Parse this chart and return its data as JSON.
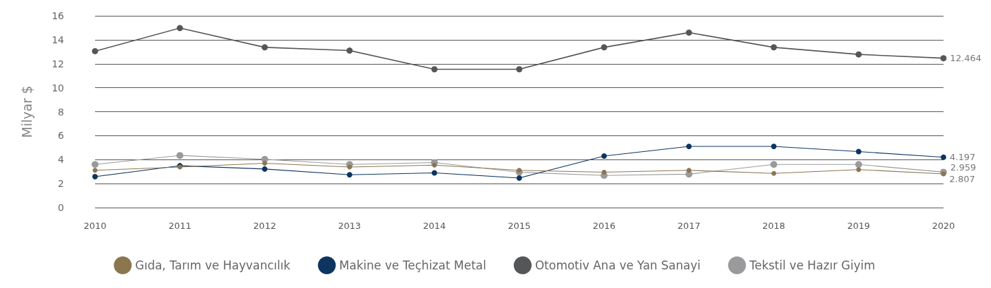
{
  "chart_data": {
    "type": "line",
    "ylabel": "Milyar $",
    "categories": [
      "2010",
      "2011",
      "2012",
      "2013",
      "2014",
      "2015",
      "2016",
      "2017",
      "2018",
      "2019",
      "2020"
    ],
    "series": [
      {
        "name": "Gıda, Tarım ve Hayvancılık",
        "color": "#8b7650",
        "values": [
          3.11,
          3.38,
          3.7,
          3.38,
          3.54,
          3.11,
          2.95,
          3.11,
          2.85,
          3.17,
          2.807
        ],
        "value_labels": [
          null,
          null,
          null,
          null,
          null,
          null,
          null,
          null,
          null,
          null,
          "2.807"
        ]
      },
      {
        "name": "Makine ve Teçhizat Metal",
        "color": "#0d3560",
        "values": [
          2.58,
          3.49,
          3.22,
          2.74,
          2.9,
          2.47,
          4.3,
          5.1,
          5.1,
          4.67,
          4.197
        ],
        "value_labels": [
          null,
          null,
          null,
          null,
          null,
          null,
          null,
          null,
          null,
          null,
          "4.197"
        ]
      },
      {
        "name": "Otomotiv Ana ve Yan Sanayi",
        "color": "#555658",
        "values": [
          13.05,
          14.98,
          13.37,
          13.1,
          11.54,
          11.54,
          13.37,
          14.6,
          13.37,
          12.78,
          12.464
        ],
        "value_labels": [
          null,
          null,
          null,
          null,
          null,
          null,
          null,
          null,
          null,
          null,
          "12.464"
        ]
      },
      {
        "name": "Tekstil ve Hazır Giyim",
        "color": "#9a9a9c",
        "values": [
          3.6,
          4.35,
          4.03,
          3.6,
          3.76,
          2.95,
          2.68,
          2.79,
          3.6,
          3.6,
          2.959
        ],
        "value_labels": [
          null,
          null,
          null,
          null,
          null,
          null,
          null,
          null,
          null,
          null,
          "2.959"
        ]
      }
    ],
    "ylim": [
      0,
      16
    ],
    "yticks": [
      0,
      2,
      4,
      6,
      8,
      10,
      12,
      14,
      16
    ],
    "grid": "y",
    "legend": "bottom",
    "marker": "circle",
    "line_style": "solid"
  }
}
